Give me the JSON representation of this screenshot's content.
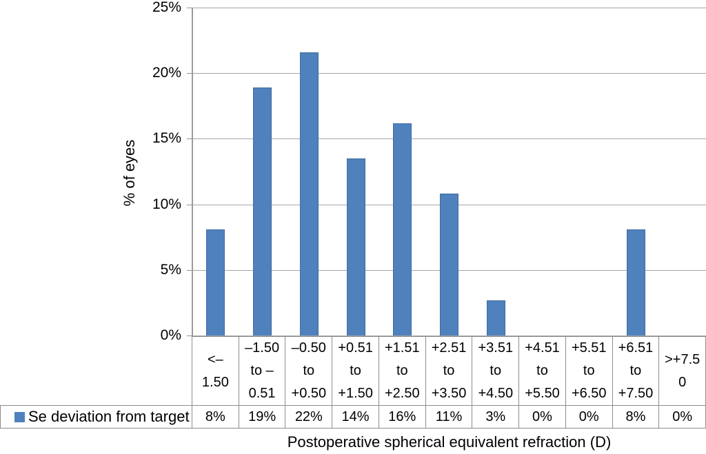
{
  "chart_data": {
    "type": "bar",
    "title": "",
    "xlabel": "Postoperative spherical equivalent refraction (D)",
    "ylabel": "% of eyes",
    "ylim": [
      0,
      25
    ],
    "ytick_step": 5,
    "ytick_labels": [
      "0%",
      "5%",
      "10%",
      "15%",
      "20%",
      "25%"
    ],
    "grid": "horizontal",
    "legend_position": "data-table-left",
    "categories": [
      "<– 1.50",
      "–1.50 to – 0.51",
      "–0.50 to +0.50",
      "+0.51 to +1.50",
      "+1.51 to +2.50",
      "+2.51 to +3.50",
      "+3.51 to +4.50",
      "+4.51 to +5.50",
      "+5.51 to +6.50",
      "+6.51 to +7.50",
      ">+7.5 0"
    ],
    "categories_wrapped": [
      "<–\n1.50",
      "–1.50\nto –\n0.51",
      "–0.50\nto\n+0.50",
      "+0.51\nto\n+1.50",
      "+1.51\nto\n+2.50",
      "+2.51\nto\n+3.50",
      "+3.51\nto\n+4.50",
      "+4.51\nto\n+5.50",
      "+5.51\nto\n+6.50",
      "+6.51\nto\n+7.50",
      ">+7.5\n0"
    ],
    "series": [
      {
        "name": "Se deviation from target",
        "values": [
          8.1,
          18.9,
          21.6,
          13.5,
          16.2,
          10.8,
          2.7,
          0,
          0,
          8.1,
          0
        ],
        "value_labels": [
          "8%",
          "19%",
          "22%",
          "14%",
          "16%",
          "11%",
          "3%",
          "0%",
          "0%",
          "8%",
          "0%"
        ],
        "color": "#4F81BD"
      }
    ]
  },
  "colors": {
    "bar_fill": "#4F81BD",
    "bar_border": "#406A9D",
    "gridline": "#A6A6A6",
    "axis_line": "#9A9A9A",
    "table_border": "#8C8C8C",
    "text": "#000000",
    "background": "#FFFFFF"
  }
}
